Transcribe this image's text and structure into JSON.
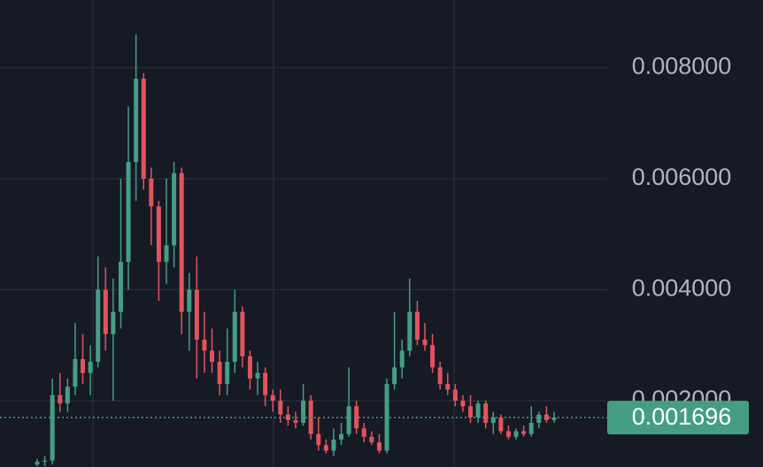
{
  "chart_data": {
    "type": "candlestick",
    "open": [
      0.00085,
      0.0009,
      0.00092,
      0.0021,
      0.00195,
      0.00225,
      0.00275,
      0.0025,
      0.0027,
      0.004,
      0.0032,
      0.0036,
      0.0045,
      0.0063,
      0.0078,
      0.006,
      0.0055,
      0.0045,
      0.0048,
      0.0061,
      0.0036,
      0.004,
      0.0031,
      0.0029,
      0.0027,
      0.0023,
      0.0027,
      0.0036,
      0.0028,
      0.0024,
      0.0025,
      0.0021,
      0.002,
      0.00175,
      0.00165,
      0.0016,
      0.002,
      0.0014,
      0.0012,
      0.0011,
      0.0013,
      0.0014,
      0.0019,
      0.0015,
      0.00135,
      0.00125,
      0.0011,
      0.0023,
      0.0026,
      0.0029,
      0.0036,
      0.0031,
      0.003,
      0.0026,
      0.0023,
      0.0022,
      0.002,
      0.0019,
      0.0017,
      0.00195,
      0.0016,
      0.0017,
      0.00145,
      0.00135,
      0.00145,
      0.0014,
      0.0016,
      0.00175,
      0.00165
    ],
    "high": [
      0.00095,
      0.001,
      0.0024,
      0.0025,
      0.0024,
      0.0034,
      0.0032,
      0.003,
      0.0046,
      0.0044,
      0.0042,
      0.006,
      0.0073,
      0.0086,
      0.0079,
      0.0062,
      0.0056,
      0.006,
      0.0063,
      0.0062,
      0.0043,
      0.0046,
      0.0036,
      0.0033,
      0.0029,
      0.0033,
      0.004,
      0.0037,
      0.0029,
      0.0027,
      0.0026,
      0.0022,
      0.0022,
      0.0019,
      0.0018,
      0.0023,
      0.0021,
      0.0017,
      0.0013,
      0.0015,
      0.0016,
      0.0026,
      0.002,
      0.0016,
      0.00145,
      0.0014,
      0.0024,
      0.0036,
      0.0031,
      0.0042,
      0.0038,
      0.0034,
      0.0032,
      0.0027,
      0.0025,
      0.0023,
      0.0021,
      0.0021,
      0.002,
      0.002,
      0.0018,
      0.00175,
      0.00155,
      0.0015,
      0.00155,
      0.0019,
      0.0018,
      0.0019,
      0.0018
    ],
    "low": [
      0.00082,
      0.00082,
      0.00085,
      0.0018,
      0.0018,
      0.0021,
      0.0023,
      0.0021,
      0.0026,
      0.0029,
      0.002,
      0.0033,
      0.004,
      0.0056,
      0.0058,
      0.0048,
      0.0038,
      0.0041,
      0.0044,
      0.0032,
      0.0029,
      0.0024,
      0.0025,
      0.0025,
      0.0021,
      0.0021,
      0.0025,
      0.0026,
      0.0022,
      0.0021,
      0.0019,
      0.0018,
      0.0016,
      0.00155,
      0.0015,
      0.00155,
      0.0013,
      0.0011,
      0.00105,
      0.001,
      0.0012,
      0.00135,
      0.0014,
      0.00125,
      0.0012,
      0.00105,
      0.00105,
      0.0022,
      0.0024,
      0.0028,
      0.003,
      0.0029,
      0.0025,
      0.0022,
      0.0021,
      0.0019,
      0.0018,
      0.0016,
      0.0016,
      0.0015,
      0.0014,
      0.0014,
      0.0013,
      0.0013,
      0.00135,
      0.00135,
      0.0015,
      0.0016,
      0.0016
    ],
    "close": [
      0.0009,
      0.00092,
      0.0021,
      0.00195,
      0.00225,
      0.00275,
      0.0025,
      0.0027,
      0.004,
      0.0032,
      0.0036,
      0.0045,
      0.0063,
      0.0078,
      0.006,
      0.0055,
      0.0045,
      0.0048,
      0.0061,
      0.0036,
      0.004,
      0.0031,
      0.0029,
      0.0027,
      0.0023,
      0.0027,
      0.0036,
      0.0028,
      0.0024,
      0.0025,
      0.0021,
      0.002,
      0.00175,
      0.00165,
      0.0016,
      0.002,
      0.0014,
      0.0012,
      0.0011,
      0.0013,
      0.0014,
      0.0019,
      0.0015,
      0.00135,
      0.00125,
      0.0011,
      0.0023,
      0.0026,
      0.0029,
      0.0036,
      0.0031,
      0.003,
      0.0026,
      0.0023,
      0.0022,
      0.002,
      0.0019,
      0.0017,
      0.00195,
      0.0016,
      0.0017,
      0.00145,
      0.00135,
      0.00145,
      0.0014,
      0.0016,
      0.00175,
      0.00165,
      0.001696
    ],
    "up_color": "#459e83",
    "down_color": "#e2545c",
    "ylim": [
      0.000805,
      0.009219
    ],
    "yticks": [
      {
        "value": 0.002,
        "label": "0.002000"
      },
      {
        "value": 0.004,
        "label": "0.004000"
      },
      {
        "value": 0.006,
        "label": "0.006000"
      },
      {
        "value": 0.008,
        "label": "0.008000"
      }
    ],
    "grid": true,
    "last_price": 0.001696
  }
}
